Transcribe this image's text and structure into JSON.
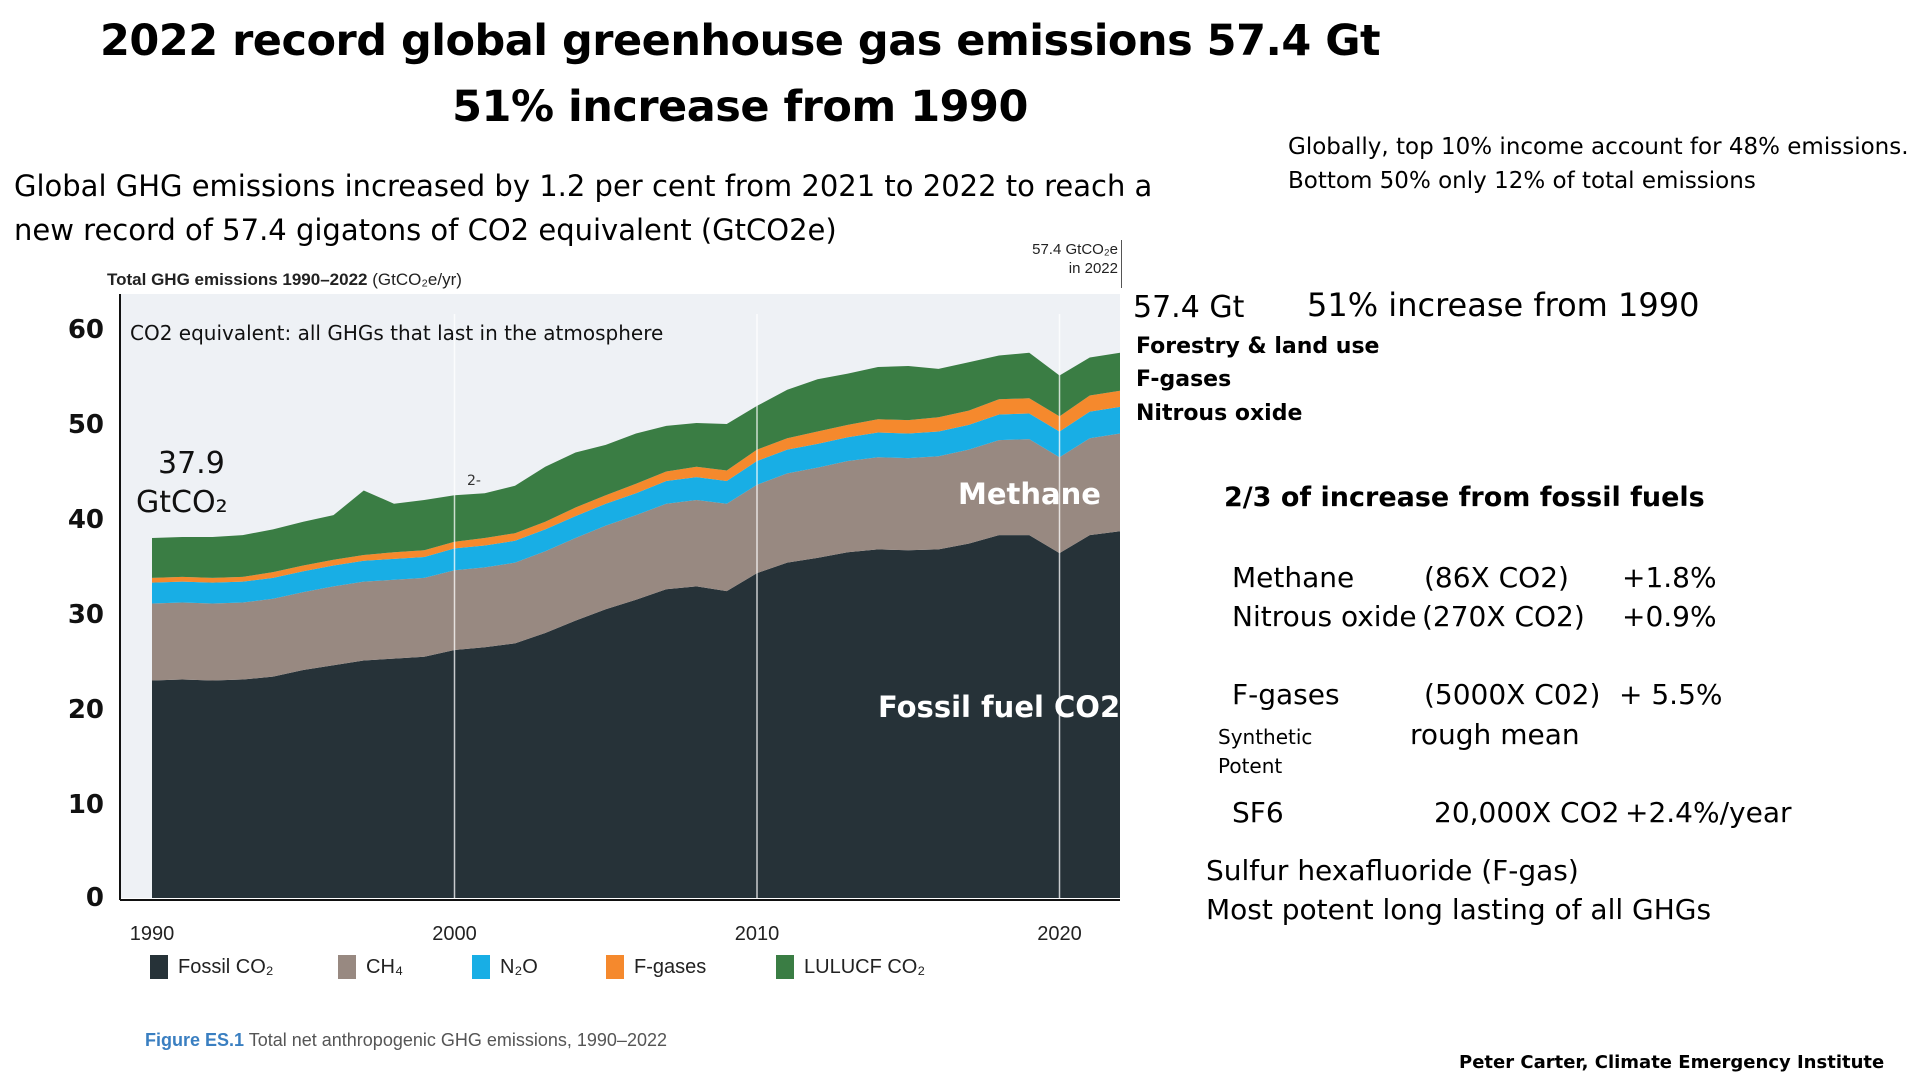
{
  "title_line1": "2022 record global greenhouse gas emissions 57.4 Gt",
  "title_line2": "51% increase from 1990",
  "intro_line1": "Global GHG emissions increased by 1.2 per cent from 2021 to 2022 to reach a",
  "intro_line2": "new record of 57.4 gigatons of CO2 equivalent (GtCO2e)",
  "top_right_line1": "Globally, top 10% income  account for 48% emissions.",
  "top_right_line2": "Bottom 50% only 12% of total emissions",
  "chart_subtitle_bold": "Total GHG emissions 1990–2022",
  "chart_subtitle_unit": "(GtCO₂e/yr)",
  "callout_2022_line1": "57.4 GtCO₂e",
  "callout_2022_line2": "in 2022",
  "co2eq_note": "CO2 equivalent: all GHGs that last in the atmosphere",
  "start_value_line1": "37.9",
  "start_value_line2": "GtCO₂",
  "stray_mark": "2-",
  "methane_label": "Methane",
  "fossil_label": "Fossil fuel CO2",
  "caption_fig": "Figure ES.1",
  "caption_text": "Total net anthropogenic GHG emissions, 1990–2022",
  "right_panel": {
    "gt": "57.4 Gt",
    "increase": "51% increase from 1990",
    "forestry": "Forestry & land use",
    "fgases": "F-gases",
    "nitrous": "Nitrous oxide",
    "two_thirds": "2/3 of increase from fossil fuels",
    "methane_name": "Methane",
    "methane_gwp": "(86X CO2)",
    "methane_pct": "+1.8%",
    "nitrous_name": "Nitrous oxide",
    "nitrous_gwp": "(270X CO2)",
    "nitrous_pct": "+0.9%",
    "fgas_name": "F-gases",
    "fgas_gwp": "(5000X C02)",
    "fgas_pct": "+ 5.5%",
    "synthetic": "Synthetic",
    "potent": "Potent",
    "rough_mean": "rough mean",
    "sf6_name": "SF6",
    "sf6_gwp": "20,000X CO2",
    "sf6_pct": "+2.4%/year",
    "sulfur_line1": "Sulfur hexafluoride (F-gas)",
    "sulfur_line2": "Most potent long lasting of all GHGs"
  },
  "credit": "Peter Carter, Climate Emergency Institute",
  "chart_data": {
    "type": "area",
    "stacked": true,
    "title": "Total GHG emissions 1990–2022",
    "ylabel": "",
    "xlabel": "",
    "unit": "GtCO₂e/yr",
    "ylim": [
      0,
      60
    ],
    "yticks": [
      0,
      10,
      20,
      30,
      40,
      50,
      60
    ],
    "xticks": [
      1990,
      2000,
      2010,
      2020
    ],
    "grid": "vertical",
    "legend_position": "bottom",
    "x": [
      1990,
      1991,
      1992,
      1993,
      1994,
      1995,
      1996,
      1997,
      1998,
      1999,
      2000,
      2001,
      2002,
      2003,
      2004,
      2005,
      2006,
      2007,
      2008,
      2009,
      2010,
      2011,
      2012,
      2013,
      2014,
      2015,
      2016,
      2017,
      2018,
      2019,
      2020,
      2021,
      2022
    ],
    "series": [
      {
        "name": "Fossil CO₂",
        "color": "#263238",
        "values": [
          22.9,
          23.0,
          22.9,
          23.0,
          23.3,
          24.0,
          24.5,
          25.0,
          25.2,
          25.4,
          26.1,
          26.4,
          26.8,
          27.9,
          29.2,
          30.4,
          31.4,
          32.5,
          32.8,
          32.3,
          34.2,
          35.3,
          35.8,
          36.4,
          36.7,
          36.6,
          36.7,
          37.3,
          38.2,
          38.2,
          36.3,
          38.2,
          38.6
        ]
      },
      {
        "name": "CH₄",
        "color": "#988981",
        "values": [
          8.1,
          8.1,
          8.1,
          8.1,
          8.2,
          8.2,
          8.3,
          8.3,
          8.3,
          8.3,
          8.4,
          8.4,
          8.5,
          8.6,
          8.7,
          8.8,
          8.9,
          9.0,
          9.1,
          9.2,
          9.3,
          9.4,
          9.5,
          9.6,
          9.7,
          9.7,
          9.8,
          9.9,
          10.0,
          10.1,
          10.1,
          10.2,
          10.3
        ]
      },
      {
        "name": "N₂O",
        "color": "#18aee5",
        "values": [
          2.2,
          2.2,
          2.2,
          2.2,
          2.2,
          2.2,
          2.2,
          2.2,
          2.2,
          2.2,
          2.3,
          2.3,
          2.3,
          2.3,
          2.3,
          2.3,
          2.3,
          2.4,
          2.4,
          2.4,
          2.5,
          2.5,
          2.5,
          2.5,
          2.6,
          2.6,
          2.6,
          2.6,
          2.7,
          2.7,
          2.7,
          2.8,
          2.8
        ]
      },
      {
        "name": "F-gases",
        "color": "#f5892d",
        "values": [
          0.5,
          0.5,
          0.5,
          0.5,
          0.6,
          0.6,
          0.6,
          0.6,
          0.7,
          0.7,
          0.7,
          0.8,
          0.8,
          0.8,
          0.9,
          0.9,
          1.0,
          1.0,
          1.1,
          1.1,
          1.2,
          1.2,
          1.3,
          1.3,
          1.4,
          1.4,
          1.5,
          1.5,
          1.6,
          1.6,
          1.6,
          1.7,
          1.7
        ]
      },
      {
        "name": "LULUCF CO₂",
        "color": "#3a7d44",
        "values": [
          4.2,
          4.2,
          4.3,
          4.4,
          4.5,
          4.6,
          4.7,
          6.8,
          5.1,
          5.3,
          4.9,
          4.7,
          5.0,
          5.8,
          5.8,
          5.3,
          5.3,
          4.8,
          4.6,
          4.9,
          4.6,
          5.1,
          5.5,
          5.4,
          5.5,
          5.7,
          5.1,
          5.1,
          4.6,
          4.8,
          4.3,
          4.0,
          4.0
        ]
      }
    ],
    "annotations": [
      "37.9 GtCO₂",
      "57.4 GtCO₂e in 2022",
      "Methane",
      "Fossil fuel CO2",
      "CO2 equivalent: all GHGs that last in the atmosphere"
    ]
  }
}
